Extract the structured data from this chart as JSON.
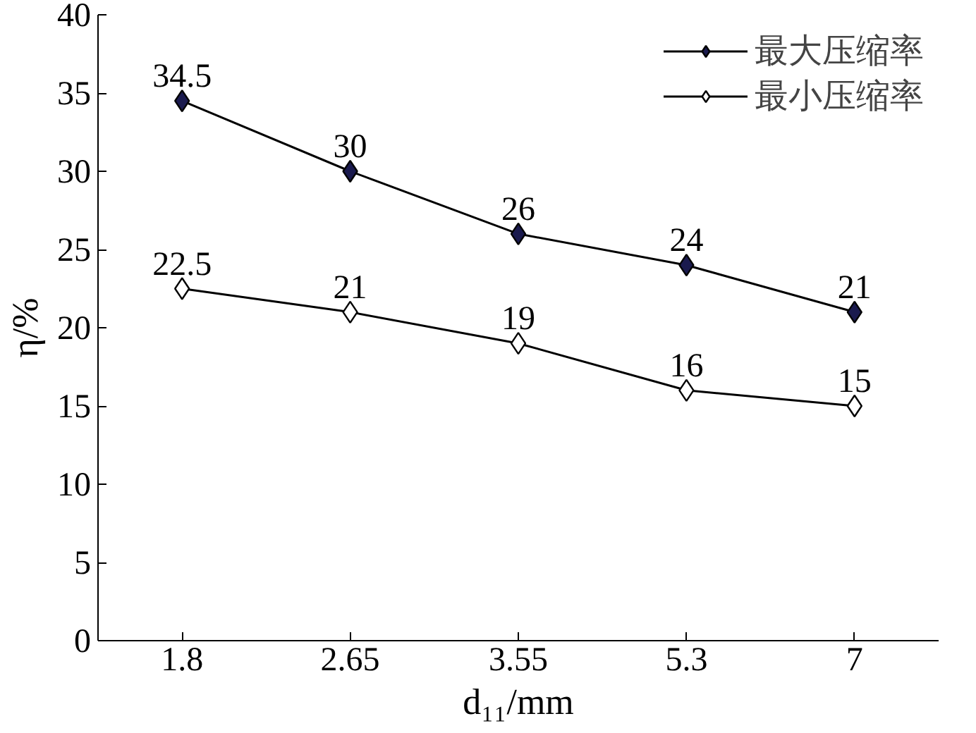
{
  "chart_data": {
    "type": "line",
    "xlabel": "d₁₁/mm",
    "ylabel": "η/%",
    "categories": [
      "1.8",
      "2.65",
      "3.55",
      "5.3",
      "7"
    ],
    "series": [
      {
        "name": "最大压缩率",
        "color": "#1a1a4e",
        "values": [
          34.5,
          30,
          26,
          24,
          21
        ]
      },
      {
        "name": "最小压缩率",
        "color": "#ffffff",
        "values": [
          22.5,
          21,
          19,
          16,
          15
        ]
      }
    ],
    "ylim": [
      0,
      40
    ],
    "yticks": [
      0,
      5,
      10,
      15,
      20,
      25,
      30,
      35,
      40
    ],
    "grid": false,
    "legend": "top right",
    "marker": "diamond",
    "line_style": "solid",
    "data_labels": true
  }
}
